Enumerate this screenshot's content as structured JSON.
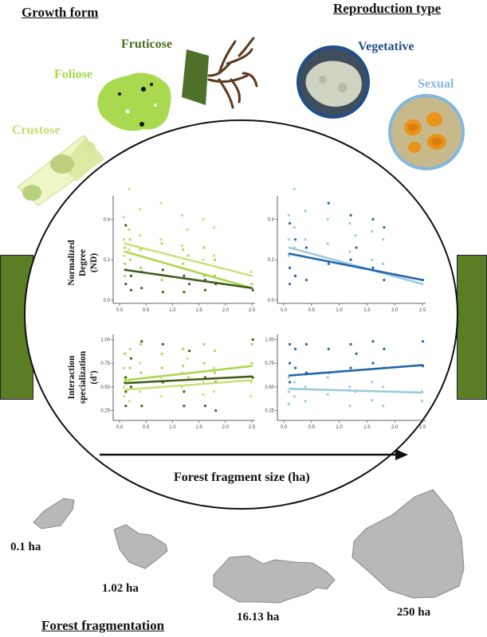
{
  "headers": {
    "growth_form": "Growth form",
    "reproduction_type": "Reproduction type",
    "forest_fragmentation": "Forest fragmentation"
  },
  "growth_forms": [
    {
      "label": "Crustose",
      "color": "#c2dc73"
    },
    {
      "label": "Foliose",
      "color": "#a7d94a"
    },
    {
      "label": "Fruticose",
      "color": "#4a6b22"
    }
  ],
  "reproduction_types": [
    {
      "label": "Vegetative",
      "color": "#1f4e8a"
    },
    {
      "label": "Sexual",
      "color": "#84b6e0"
    }
  ],
  "axis_text": {
    "nd_ylabel_1": "Normalized",
    "nd_ylabel_2": "Degree",
    "nd_ylabel_3": "(ND)",
    "is_ylabel_1": "Interaction",
    "is_ylabel_2": "specialization",
    "is_ylabel_3": "(d')",
    "xlabel": "Forest fragment size (ha)"
  },
  "patches": [
    {
      "label": "0.1 ha"
    },
    {
      "label": "1.02 ha"
    },
    {
      "label": "16.13 ha"
    },
    {
      "label": "250 ha"
    }
  ],
  "colors": {
    "forest_bar": "#5b7d23",
    "patch_gray": "#b8b8b8",
    "crustose": "#c8e27a",
    "foliose": "#a9d94e",
    "fruticose": "#3e5e1c",
    "vegetative": "#2166ac",
    "sexual": "#9ecae1"
  },
  "chart_data": [
    {
      "type": "scatter",
      "panel": "top-left",
      "ylabel": "Normalized Degree (ND)",
      "xlim": [
        0,
        2.5
      ],
      "ylim": [
        0,
        0.5
      ],
      "x_ticks": [
        "0.0",
        "0.5",
        "1.0",
        "1.5",
        "2.0",
        "2.5"
      ],
      "y_ticks": [
        "0.0",
        "0.2",
        "0.4"
      ],
      "x_sites": [
        0.1,
        0.2,
        0.4,
        0.8,
        1.2,
        1.3,
        1.6,
        1.8,
        2.5
      ],
      "series": [
        {
          "color": "#c8e27a",
          "trend": [
            [
              0.1,
              0.28
            ],
            [
              2.5,
              0.12
            ]
          ],
          "points": [
            [
              0.1,
              0.41
            ],
            [
              0.1,
              0.3
            ],
            [
              0.1,
              0.22
            ],
            [
              0.2,
              0.55
            ],
            [
              0.2,
              0.35
            ],
            [
              0.2,
              0.25
            ],
            [
              0.4,
              0.45
            ],
            [
              0.4,
              0.32
            ],
            [
              0.8,
              0.48
            ],
            [
              0.8,
              0.3
            ],
            [
              1.2,
              0.42
            ],
            [
              1.2,
              0.27
            ],
            [
              1.3,
              0.35
            ],
            [
              1.6,
              0.4
            ],
            [
              1.6,
              0.2
            ],
            [
              1.8,
              0.36
            ],
            [
              1.8,
              0.22
            ],
            [
              2.5,
              0.14
            ]
          ]
        },
        {
          "color": "#a9d94e",
          "trend": [
            [
              0.1,
              0.24
            ],
            [
              2.5,
              0.06
            ]
          ],
          "points": [
            [
              0.1,
              0.26
            ],
            [
              0.1,
              0.18
            ],
            [
              0.1,
              0.12
            ],
            [
              0.2,
              0.3
            ],
            [
              0.2,
              0.2
            ],
            [
              0.4,
              0.25
            ],
            [
              0.4,
              0.16
            ],
            [
              0.8,
              0.28
            ],
            [
              0.8,
              0.1
            ],
            [
              1.2,
              0.25
            ],
            [
              1.2,
              0.18
            ],
            [
              1.3,
              0.22
            ],
            [
              1.6,
              0.26
            ],
            [
              1.6,
              0.12
            ],
            [
              1.8,
              0.2
            ],
            [
              1.8,
              0.12
            ],
            [
              2.5,
              0.08
            ]
          ]
        },
        {
          "color": "#3e5e1c",
          "trend": [
            [
              0.1,
              0.15
            ],
            [
              2.5,
              0.06
            ]
          ],
          "points": [
            [
              0.1,
              0.37
            ],
            [
              0.1,
              0.15
            ],
            [
              0.1,
              0.08
            ],
            [
              0.2,
              0.12
            ],
            [
              0.2,
              0.05
            ],
            [
              0.4,
              0.14
            ],
            [
              0.4,
              0.06
            ],
            [
              0.8,
              0.04
            ],
            [
              0.8,
              0.15
            ],
            [
              1.2,
              0.12
            ],
            [
              1.2,
              0.04
            ],
            [
              1.3,
              0.08
            ],
            [
              1.6,
              0.1
            ],
            [
              1.6,
              0.05
            ],
            [
              1.8,
              0.08
            ],
            [
              2.5,
              0.05
            ]
          ]
        }
      ]
    },
    {
      "type": "scatter",
      "panel": "top-right",
      "ylabel": "Normalized Degree (ND)",
      "xlim": [
        0,
        2.5
      ],
      "ylim": [
        0,
        0.5
      ],
      "x_ticks": [
        "0.0",
        "0.5",
        "1.0",
        "1.5",
        "2.0",
        "2.5"
      ],
      "y_ticks": [
        "0.0",
        "0.2",
        "0.4"
      ],
      "x_sites": [
        0.1,
        0.2,
        0.4,
        0.8,
        1.2,
        1.3,
        1.6,
        1.8,
        2.5
      ],
      "series": [
        {
          "color": "#9ecae1",
          "trend": [
            [
              0.1,
              0.26
            ],
            [
              2.5,
              0.08
            ]
          ],
          "points": [
            [
              0.1,
              0.42
            ],
            [
              0.1,
              0.3
            ],
            [
              0.1,
              0.22
            ],
            [
              0.2,
              0.55
            ],
            [
              0.2,
              0.36
            ],
            [
              0.2,
              0.26
            ],
            [
              0.4,
              0.44
            ],
            [
              0.4,
              0.3
            ],
            [
              0.8,
              0.4
            ],
            [
              0.8,
              0.28
            ],
            [
              1.2,
              0.38
            ],
            [
              1.2,
              0.24
            ],
            [
              1.3,
              0.32
            ],
            [
              1.6,
              0.34
            ],
            [
              1.6,
              0.2
            ],
            [
              1.8,
              0.3
            ],
            [
              1.8,
              0.18
            ],
            [
              2.5,
              0.08
            ]
          ]
        },
        {
          "color": "#2166ac",
          "trend": [
            [
              0.1,
              0.23
            ],
            [
              2.5,
              0.1
            ]
          ],
          "points": [
            [
              0.1,
              0.38
            ],
            [
              0.1,
              0.16
            ],
            [
              0.1,
              0.08
            ],
            [
              0.2,
              0.3
            ],
            [
              0.2,
              0.12
            ],
            [
              0.4,
              0.26
            ],
            [
              0.4,
              0.1
            ],
            [
              0.8,
              0.48
            ],
            [
              0.8,
              0.18
            ],
            [
              1.2,
              0.42
            ],
            [
              1.2,
              0.2
            ],
            [
              1.3,
              0.26
            ],
            [
              1.6,
              0.4
            ],
            [
              1.6,
              0.16
            ],
            [
              1.8,
              0.36
            ],
            [
              1.8,
              0.1
            ],
            [
              2.5,
              0.1
            ]
          ]
        }
      ]
    },
    {
      "type": "scatter",
      "panel": "bottom-left",
      "ylabel": "Interaction specialization (d')",
      "xlim": [
        0,
        2.5
      ],
      "ylim": [
        0.18,
        1.02
      ],
      "x_ticks": [
        "0.0",
        "0.5",
        "1.0",
        "1.5",
        "2.0",
        "2.5"
      ],
      "y_ticks": [
        "0.25",
        "0.50",
        "0.75",
        "1.00"
      ],
      "x_sites": [
        0.1,
        0.2,
        0.4,
        0.8,
        1.2,
        1.3,
        1.6,
        1.8,
        2.5
      ],
      "series": [
        {
          "color": "#c8e27a",
          "trend": [
            [
              0.1,
              0.47
            ],
            [
              2.5,
              0.57
            ]
          ],
          "points": [
            [
              0.1,
              0.7
            ],
            [
              0.1,
              0.5
            ],
            [
              0.1,
              0.4
            ],
            [
              0.2,
              0.55
            ],
            [
              0.2,
              0.35
            ],
            [
              0.4,
              0.75
            ],
            [
              0.4,
              0.45
            ],
            [
              0.8,
              0.6
            ],
            [
              0.8,
              0.4
            ],
            [
              1.2,
              0.65
            ],
            [
              1.2,
              0.5
            ],
            [
              1.3,
              0.8
            ],
            [
              1.6,
              0.55
            ],
            [
              1.6,
              0.42
            ],
            [
              1.8,
              0.7
            ],
            [
              1.8,
              0.45
            ],
            [
              2.5,
              0.55
            ],
            [
              2.5,
              0.4
            ]
          ]
        },
        {
          "color": "#a9d94e",
          "trend": [
            [
              0.1,
              0.57
            ],
            [
              2.5,
              0.72
            ]
          ],
          "points": [
            [
              0.1,
              0.85
            ],
            [
              0.1,
              0.6
            ],
            [
              0.1,
              0.55
            ],
            [
              0.2,
              0.9
            ],
            [
              0.2,
              0.7
            ],
            [
              0.4,
              0.95
            ],
            [
              0.4,
              0.65
            ],
            [
              0.8,
              0.85
            ],
            [
              0.8,
              0.7
            ],
            [
              1.2,
              0.9
            ],
            [
              1.2,
              0.72
            ],
            [
              1.3,
              0.6
            ],
            [
              1.6,
              0.95
            ],
            [
              1.6,
              0.75
            ],
            [
              1.8,
              0.88
            ],
            [
              1.8,
              0.65
            ],
            [
              2.5,
              0.95
            ],
            [
              2.5,
              0.75
            ]
          ]
        },
        {
          "color": "#3e5e1c",
          "trend": [
            [
              0.1,
              0.54
            ],
            [
              2.5,
              0.61
            ]
          ],
          "points": [
            [
              0.1,
              0.6
            ],
            [
              0.1,
              0.45
            ],
            [
              0.1,
              0.3
            ],
            [
              0.2,
              0.8
            ],
            [
              0.2,
              0.5
            ],
            [
              0.4,
              0.98
            ],
            [
              0.4,
              0.3
            ],
            [
              0.8,
              0.95
            ],
            [
              0.8,
              0.55
            ],
            [
              1.2,
              0.45
            ],
            [
              1.2,
              0.3
            ],
            [
              1.3,
              0.88
            ],
            [
              1.6,
              0.6
            ],
            [
              1.6,
              0.3
            ],
            [
              1.8,
              0.55
            ],
            [
              1.8,
              0.25
            ],
            [
              2.5,
              1.0
            ],
            [
              2.5,
              0.6
            ]
          ]
        }
      ]
    },
    {
      "type": "scatter",
      "panel": "bottom-right",
      "ylabel": "Interaction specialization (d')",
      "xlim": [
        0,
        2.5
      ],
      "ylim": [
        0.18,
        1.02
      ],
      "x_ticks": [
        "0.0",
        "0.5",
        "1.0",
        "1.5",
        "2.0",
        "2.5"
      ],
      "y_ticks": [
        "0.25",
        "0.50",
        "0.75",
        "1.00"
      ],
      "x_sites": [
        0.1,
        0.2,
        0.4,
        0.8,
        1.2,
        1.3,
        1.6,
        1.8,
        2.5
      ],
      "series": [
        {
          "color": "#9ecae1",
          "trend": [
            [
              0.1,
              0.48
            ],
            [
              2.5,
              0.44
            ]
          ],
          "points": [
            [
              0.1,
              0.6
            ],
            [
              0.1,
              0.45
            ],
            [
              0.1,
              0.32
            ],
            [
              0.2,
              0.55
            ],
            [
              0.2,
              0.4
            ],
            [
              0.4,
              0.5
            ],
            [
              0.4,
              0.35
            ],
            [
              0.8,
              0.6
            ],
            [
              0.8,
              0.42
            ],
            [
              1.2,
              0.5
            ],
            [
              1.2,
              0.3
            ],
            [
              1.3,
              0.45
            ],
            [
              1.6,
              0.55
            ],
            [
              1.6,
              0.36
            ],
            [
              1.8,
              0.5
            ],
            [
              1.8,
              0.3
            ],
            [
              2.5,
              0.45
            ],
            [
              2.5,
              0.35
            ]
          ]
        },
        {
          "color": "#2166ac",
          "trend": [
            [
              0.1,
              0.62
            ],
            [
              2.5,
              0.73
            ]
          ],
          "points": [
            [
              0.1,
              0.95
            ],
            [
              0.1,
              0.75
            ],
            [
              0.1,
              0.55
            ],
            [
              0.2,
              0.9
            ],
            [
              0.2,
              0.7
            ],
            [
              0.4,
              0.95
            ],
            [
              0.4,
              0.65
            ],
            [
              0.8,
              0.9
            ],
            [
              0.8,
              0.65
            ],
            [
              1.2,
              0.95
            ],
            [
              1.2,
              0.7
            ],
            [
              1.3,
              0.85
            ],
            [
              1.6,
              0.98
            ],
            [
              1.6,
              0.75
            ],
            [
              1.8,
              0.9
            ],
            [
              1.8,
              0.7
            ],
            [
              2.5,
              0.98
            ],
            [
              2.5,
              0.72
            ]
          ]
        }
      ]
    }
  ]
}
